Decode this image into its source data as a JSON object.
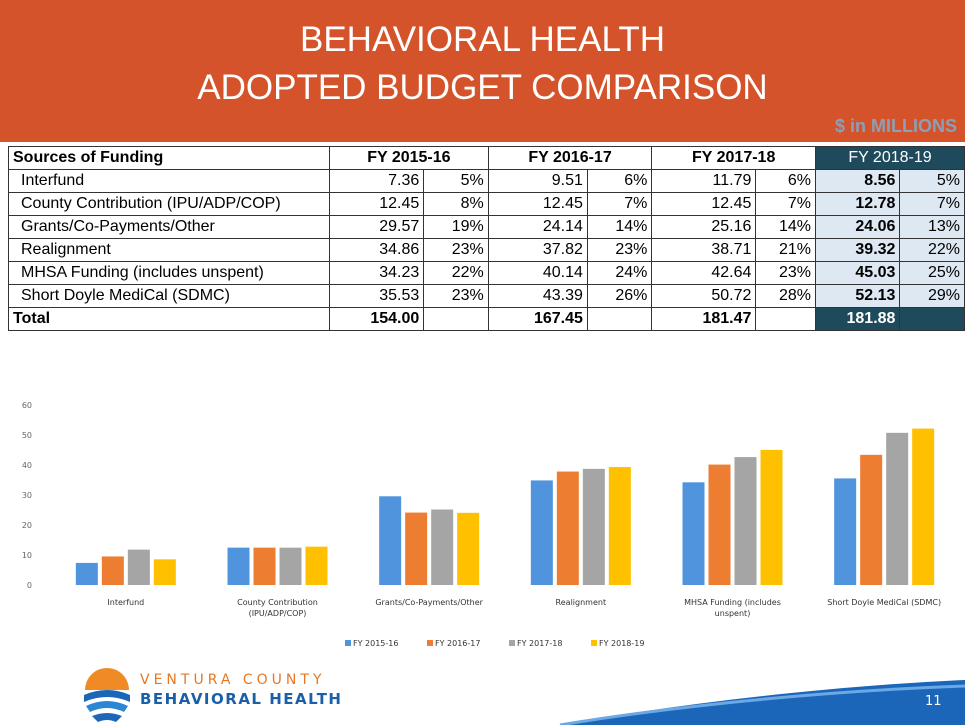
{
  "header": {
    "title_lines": [
      "BEHAVIORAL HEALTH",
      "ADOPTED BUDGET COMPARISON"
    ],
    "units": "$ in MILLIONS"
  },
  "table": {
    "header": [
      "Sources of Funding",
      "FY 2015-16",
      "FY 2016-17",
      "FY 2017-18",
      "FY 2018-19"
    ],
    "rows": [
      [
        "Interfund",
        "7.36",
        "5%",
        "9.51",
        "6%",
        "11.79",
        "6%",
        "8.56",
        "5%"
      ],
      [
        "County Contribution (IPU/ADP/COP)",
        "12.45",
        "8%",
        "12.45",
        "7%",
        "12.45",
        "7%",
        "12.78",
        "7%"
      ],
      [
        "Grants/Co-Payments/Other",
        "29.57",
        "19%",
        "24.14",
        "14%",
        "25.16",
        "14%",
        "24.06",
        "13%"
      ],
      [
        "Realignment",
        "34.86",
        "23%",
        "37.82",
        "23%",
        "38.71",
        "21%",
        "39.32",
        "22%"
      ],
      [
        "MHSA Funding (includes unspent)",
        "34.23",
        "22%",
        "40.14",
        "24%",
        "42.64",
        "23%",
        "45.03",
        "25%"
      ],
      [
        "Short Doyle MediCal (SDMC)",
        "35.53",
        "23%",
        "43.39",
        "26%",
        "50.72",
        "28%",
        "52.13",
        "29%"
      ]
    ],
    "total": {
      "label": "Total",
      "values": [
        "154.00",
        "167.45",
        "181.47",
        "181.88"
      ]
    }
  },
  "chart_data": {
    "type": "bar",
    "categories": [
      "Interfund",
      "County Contribution (IPU/ADP/COP)",
      "Grants/Co-Payments/Other",
      "Realignment",
      "MHSA Funding (includes unspent)",
      "Short Doyle MediCal (SDMC)"
    ],
    "series": [
      {
        "name": "FY 2015-16",
        "color": "#4f94dc",
        "values": [
          7.36,
          12.45,
          29.57,
          34.86,
          34.23,
          35.53
        ]
      },
      {
        "name": "FY 2016-17",
        "color": "#ed7d31",
        "values": [
          9.51,
          12.45,
          24.14,
          37.82,
          40.14,
          43.39
        ]
      },
      {
        "name": "FY 2017-18",
        "color": "#a5a5a5",
        "values": [
          11.79,
          12.45,
          25.16,
          38.71,
          42.64,
          50.72
        ]
      },
      {
        "name": "FY 2018-19",
        "color": "#ffc000",
        "values": [
          8.56,
          12.78,
          24.06,
          39.32,
          45.03,
          52.13
        ]
      }
    ],
    "ylim": [
      0,
      60
    ],
    "yticks": [
      0,
      10,
      20,
      30,
      40,
      50,
      60
    ],
    "grid": false,
    "legend": "bottom"
  },
  "footer": {
    "logo_top": "VENTURA COUNTY",
    "logo_bottom": "BEHAVIORAL HEALTH",
    "page_number": "11"
  }
}
